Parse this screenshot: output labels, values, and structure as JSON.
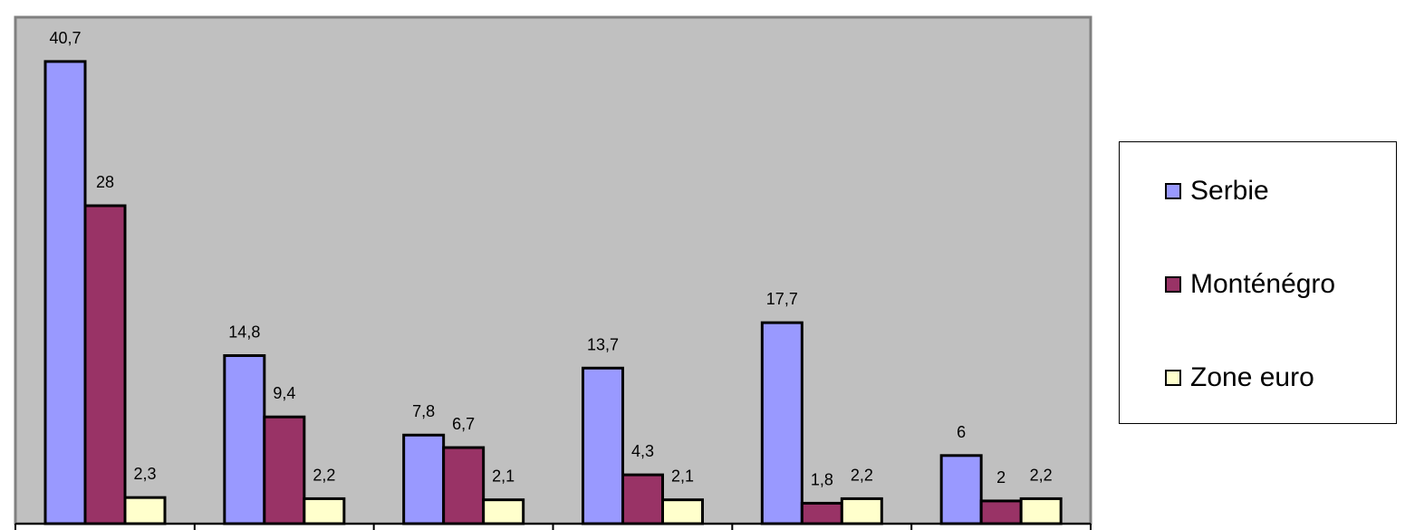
{
  "chart_data": {
    "type": "bar",
    "title": "",
    "xlabel": "",
    "ylabel": "",
    "categories": [
      "",
      "",
      "",
      "",
      "",
      ""
    ],
    "series": [
      {
        "name": "Serbie",
        "color": "#9999ff",
        "values": [
          40.7,
          14.8,
          7.8,
          13.7,
          17.7,
          6
        ]
      },
      {
        "name": "Monténégro",
        "color": "#993366",
        "values": [
          28,
          9.4,
          6.7,
          4.3,
          1.8,
          2
        ]
      },
      {
        "name": "Zone euro",
        "color": "#ffffcc",
        "values": [
          2.3,
          2.2,
          2.1,
          2.1,
          2.2,
          2.2
        ]
      }
    ],
    "value_labels": [
      [
        "40,7",
        "14,8",
        "7,8",
        "13,7",
        "17,7",
        "6"
      ],
      [
        "28",
        "9,4",
        "6,7",
        "4,3",
        "1,8",
        "2"
      ],
      [
        "2,3",
        "2,2",
        "2,1",
        "2,1",
        "2,2",
        "2,2"
      ]
    ],
    "ylim": [
      0,
      44.6
    ],
    "grid": false,
    "plot_background": "#c0c0c0",
    "legend_position": "right"
  }
}
